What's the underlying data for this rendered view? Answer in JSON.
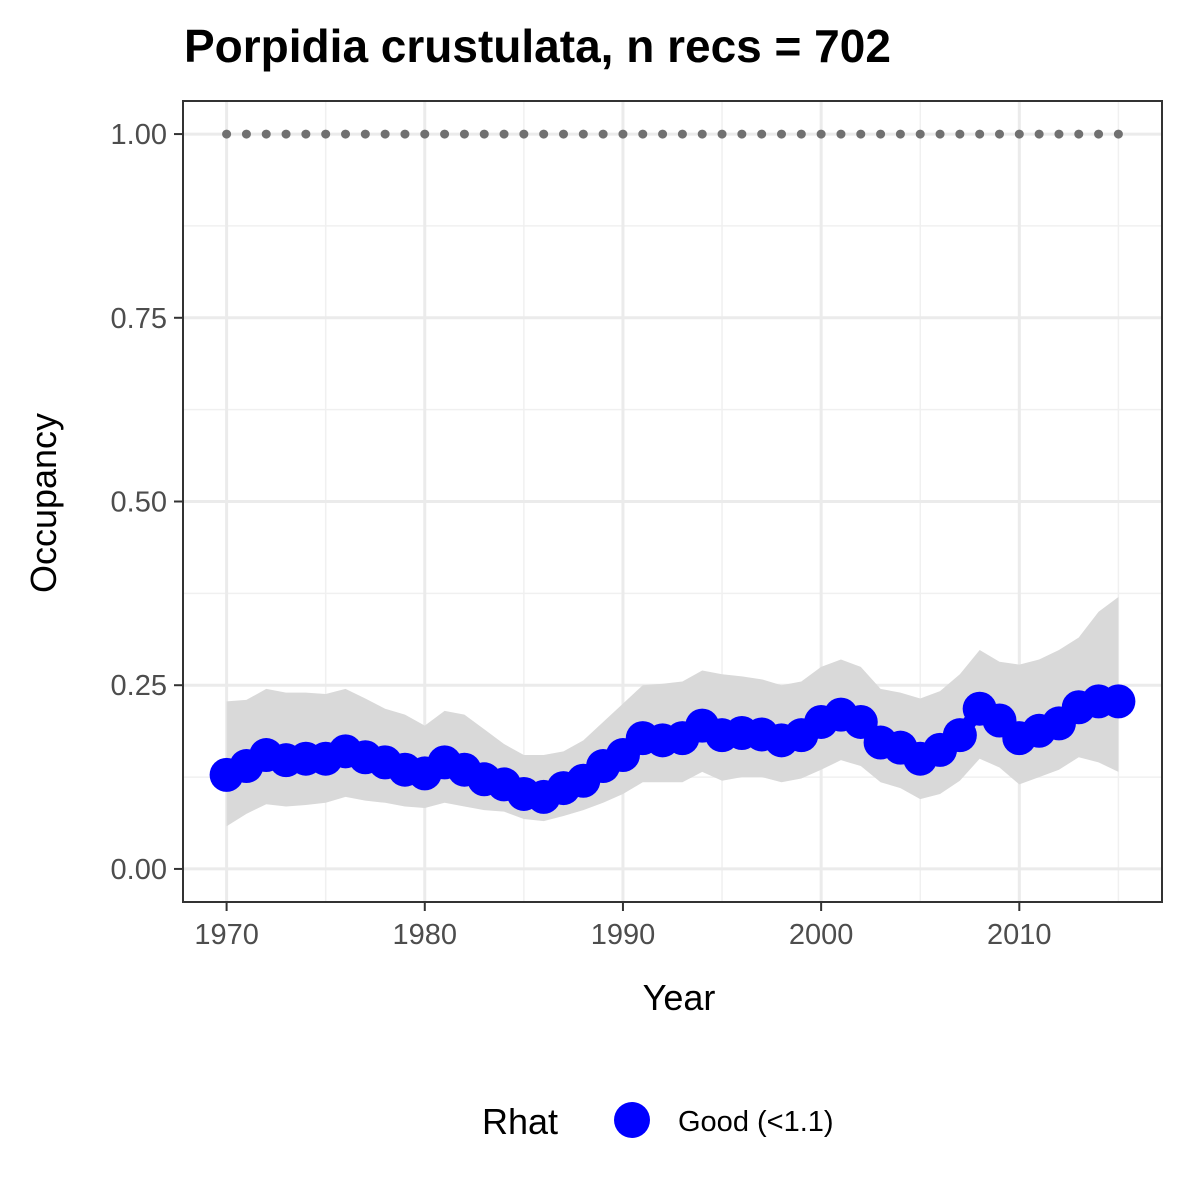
{
  "chart_data": {
    "type": "line",
    "title": "Porpidia crustulata, n recs = 702",
    "xlabel": "Year",
    "ylabel": "Occupancy",
    "xlim": [
      1967.8,
      1017.2
    ],
    "ylim": [
      -0.045,
      1.045
    ],
    "x_ticks": [
      1970,
      1980,
      1990,
      2000,
      2010
    ],
    "x_tick_labels": [
      "1970",
      "1980",
      "1990",
      "2000",
      "2010"
    ],
    "y_ticks": [
      0,
      0.25,
      0.5,
      0.75,
      1
    ],
    "y_tick_labels": [
      "0.00",
      "0.25",
      "0.50",
      "0.75",
      "1.00"
    ],
    "grid": true,
    "legend": {
      "title": "Rhat",
      "position": "bottom",
      "entries": [
        {
          "label": "Good (<1.1)",
          "color": "#0000ff"
        }
      ]
    },
    "colors": {
      "points": "#0000ff",
      "ribbon": "#d9d9d9",
      "reference": "#707070"
    },
    "x": [
      1970,
      1971,
      1972,
      1973,
      1974,
      1975,
      1976,
      1977,
      1978,
      1979,
      1980,
      1981,
      1982,
      1983,
      1984,
      1985,
      1986,
      1987,
      1988,
      1989,
      1990,
      1991,
      1992,
      1993,
      1994,
      1995,
      1996,
      1997,
      1998,
      1999,
      2000,
      2001,
      2002,
      2003,
      2004,
      2005,
      2006,
      2007,
      2008,
      2009,
      2010,
      2011,
      2012,
      2013,
      2014,
      2015
    ],
    "series": [
      {
        "name": "Good (<1.1)",
        "values": [
          0.128,
          0.14,
          0.155,
          0.148,
          0.15,
          0.15,
          0.16,
          0.152,
          0.145,
          0.135,
          0.13,
          0.145,
          0.135,
          0.122,
          0.115,
          0.102,
          0.098,
          0.11,
          0.12,
          0.14,
          0.155,
          0.178,
          0.175,
          0.178,
          0.195,
          0.182,
          0.185,
          0.183,
          0.175,
          0.182,
          0.2,
          0.21,
          0.2,
          0.172,
          0.165,
          0.15,
          0.162,
          0.182,
          0.218,
          0.202,
          0.178,
          0.188,
          0.198,
          0.22,
          0.228,
          0.228
        ],
        "lower": [
          0.058,
          0.075,
          0.088,
          0.085,
          0.087,
          0.09,
          0.098,
          0.093,
          0.09,
          0.085,
          0.083,
          0.09,
          0.085,
          0.08,
          0.078,
          0.068,
          0.065,
          0.072,
          0.08,
          0.09,
          0.102,
          0.118,
          0.118,
          0.118,
          0.132,
          0.12,
          0.125,
          0.125,
          0.118,
          0.123,
          0.135,
          0.148,
          0.14,
          0.118,
          0.11,
          0.095,
          0.102,
          0.12,
          0.15,
          0.138,
          0.115,
          0.125,
          0.135,
          0.152,
          0.145,
          0.132
        ],
        "upper": [
          0.228,
          0.23,
          0.245,
          0.24,
          0.24,
          0.238,
          0.245,
          0.232,
          0.218,
          0.21,
          0.195,
          0.215,
          0.21,
          0.19,
          0.17,
          0.155,
          0.155,
          0.16,
          0.175,
          0.2,
          0.225,
          0.25,
          0.252,
          0.255,
          0.27,
          0.265,
          0.262,
          0.258,
          0.25,
          0.255,
          0.275,
          0.285,
          0.275,
          0.245,
          0.24,
          0.232,
          0.242,
          0.265,
          0.298,
          0.282,
          0.278,
          0.285,
          0.298,
          0.315,
          0.35,
          0.37
        ]
      },
      {
        "name": "",
        "values": [
          1,
          1,
          1,
          1,
          1,
          1,
          1,
          1,
          1,
          1,
          1,
          1,
          1,
          1,
          1,
          1,
          1,
          1,
          1,
          1,
          1,
          1,
          1,
          1,
          1,
          1,
          1,
          1,
          1,
          1,
          1,
          1,
          1,
          1,
          1,
          1,
          1,
          1,
          1,
          1,
          1,
          1,
          1,
          1,
          1,
          1
        ]
      }
    ]
  }
}
